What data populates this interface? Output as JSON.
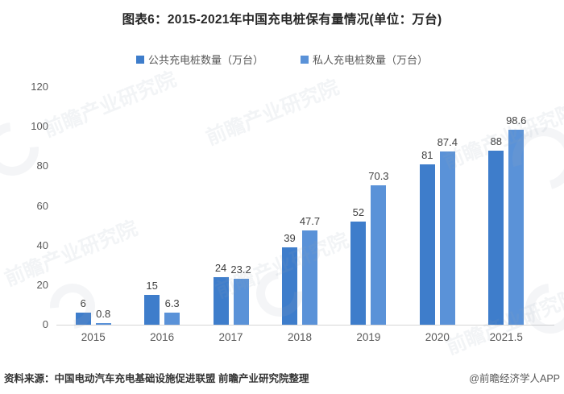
{
  "title": "图表6：2015-2021年中国充电桩保有量情况(单位：万台)",
  "legend": [
    {
      "label": "公共充电桩数量（万台）",
      "color": "#3e7dcb"
    },
    {
      "label": "私人充电桩数量（万台）",
      "color": "#5a92d8"
    }
  ],
  "chart_data": {
    "type": "bar",
    "title": "图表6：2015-2021年中国充电桩保有量情况(单位：万台)",
    "categories": [
      "2015",
      "2016",
      "2017",
      "2018",
      "2019",
      "2020",
      "2021.5"
    ],
    "series": [
      {
        "name": "公共充电桩数量（万台）",
        "color": "#3e7dcb",
        "values": [
          6,
          15,
          24,
          39,
          52,
          81,
          88
        ]
      },
      {
        "name": "私人充电桩数量（万台）",
        "color": "#5a92d8",
        "values": [
          0.8,
          6.3,
          23.2,
          47.7,
          70.3,
          87.4,
          98.6
        ]
      }
    ],
    "xlabel": "",
    "ylabel": "",
    "ylim": [
      0,
      120
    ],
    "ytick_step": 20,
    "grid": false,
    "legend_position": "top",
    "value_labels": true
  },
  "footer": {
    "source": "资料来源：中国电动汽车充电基础设施促进联盟 前瞻产业研究院整理",
    "credit": "@前瞻经济学人APP"
  },
  "watermark": {
    "text": "前瞻产业研究院"
  }
}
